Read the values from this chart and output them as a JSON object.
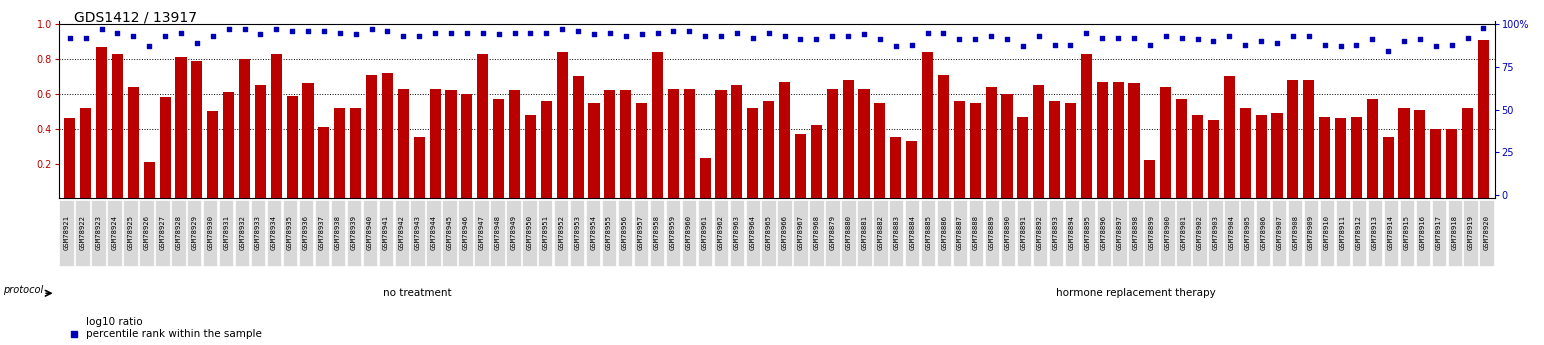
{
  "title": "GDS1412 / 13917",
  "samples": [
    "GSM78921",
    "GSM78922",
    "GSM78923",
    "GSM78924",
    "GSM78925",
    "GSM78926",
    "GSM78927",
    "GSM78928",
    "GSM78929",
    "GSM78930",
    "GSM78931",
    "GSM78932",
    "GSM78933",
    "GSM78934",
    "GSM78935",
    "GSM78936",
    "GSM78937",
    "GSM78938",
    "GSM78939",
    "GSM78940",
    "GSM78941",
    "GSM78942",
    "GSM78943",
    "GSM78944",
    "GSM78945",
    "GSM78946",
    "GSM78947",
    "GSM78948",
    "GSM78949",
    "GSM78950",
    "GSM78951",
    "GSM78952",
    "GSM78953",
    "GSM78954",
    "GSM78955",
    "GSM78956",
    "GSM78957",
    "GSM78958",
    "GSM78959",
    "GSM78960",
    "GSM78961",
    "GSM78962",
    "GSM78963",
    "GSM78964",
    "GSM78965",
    "GSM78966",
    "GSM78967",
    "GSM78968",
    "GSM78879",
    "GSM78880",
    "GSM78881",
    "GSM78882",
    "GSM78883",
    "GSM78884",
    "GSM78885",
    "GSM78886",
    "GSM78887",
    "GSM78888",
    "GSM78889",
    "GSM78890",
    "GSM78891",
    "GSM78892",
    "GSM78893",
    "GSM78894",
    "GSM78895",
    "GSM78896",
    "GSM78897",
    "GSM78898",
    "GSM78899",
    "GSM78900",
    "GSM78901",
    "GSM78902",
    "GSM78903",
    "GSM78904",
    "GSM78905",
    "GSM78906",
    "GSM78907",
    "GSM78908",
    "GSM78909",
    "GSM78910",
    "GSM78911",
    "GSM78912",
    "GSM78913",
    "GSM78914",
    "GSM78915",
    "GSM78916",
    "GSM78917",
    "GSM78918",
    "GSM78919",
    "GSM78920"
  ],
  "log10_ratio": [
    0.46,
    0.52,
    0.87,
    0.83,
    0.64,
    0.21,
    0.58,
    0.81,
    0.79,
    0.5,
    0.61,
    0.8,
    0.65,
    0.83,
    0.59,
    0.66,
    0.41,
    0.52,
    0.52,
    0.71,
    0.72,
    0.63,
    0.35,
    0.63,
    0.62,
    0.6,
    0.83,
    0.57,
    0.62,
    0.48,
    0.56,
    0.84,
    0.7,
    0.55,
    0.62,
    0.62,
    0.55,
    0.84,
    0.63,
    0.63,
    0.23,
    0.62,
    0.65,
    0.52,
    0.56,
    0.67,
    0.37,
    0.42,
    0.63,
    0.68,
    0.63,
    0.55,
    0.35,
    0.33,
    0.84,
    0.71,
    0.56,
    0.55,
    0.64,
    0.6,
    0.47,
    0.65,
    0.56,
    0.55,
    0.83,
    0.67,
    0.67,
    0.66,
    0.22,
    0.64,
    0.57,
    0.48,
    0.45,
    0.7,
    0.52,
    0.48,
    0.49,
    0.68,
    0.68,
    0.47,
    0.46,
    0.47,
    0.57,
    0.35,
    0.52,
    0.51,
    0.4,
    0.4,
    0.52,
    0.91
  ],
  "percentile_rank": [
    0.92,
    0.92,
    0.97,
    0.95,
    0.93,
    0.87,
    0.93,
    0.95,
    0.89,
    0.93,
    0.97,
    0.97,
    0.94,
    0.97,
    0.96,
    0.96,
    0.96,
    0.95,
    0.94,
    0.97,
    0.96,
    0.93,
    0.93,
    0.95,
    0.95,
    0.95,
    0.95,
    0.94,
    0.95,
    0.95,
    0.95,
    0.97,
    0.96,
    0.94,
    0.95,
    0.93,
    0.94,
    0.95,
    0.96,
    0.96,
    0.93,
    0.93,
    0.95,
    0.92,
    0.95,
    0.93,
    0.91,
    0.91,
    0.93,
    0.93,
    0.94,
    0.91,
    0.87,
    0.88,
    0.95,
    0.95,
    0.91,
    0.91,
    0.93,
    0.91,
    0.87,
    0.93,
    0.88,
    0.88,
    0.95,
    0.92,
    0.92,
    0.92,
    0.88,
    0.93,
    0.92,
    0.91,
    0.9,
    0.93,
    0.88,
    0.9,
    0.89,
    0.93,
    0.93,
    0.88,
    0.87,
    0.88,
    0.91,
    0.84,
    0.9,
    0.91,
    0.87,
    0.88,
    0.92,
    0.98
  ],
  "no_treatment_count": 45,
  "bar_color": "#bb0000",
  "dot_color": "#0000bb",
  "ylim_left": [
    0.0,
    1.0
  ],
  "ylim_right": [
    0,
    100
  ],
  "yticks_left": [
    0.2,
    0.4,
    0.6,
    0.8,
    1.0
  ],
  "yticks_right": [
    0,
    25,
    50,
    75,
    100
  ],
  "grid_values": [
    0.4,
    0.6,
    0.8
  ],
  "protocol_label": "protocol",
  "no_treatment_label": "no treatment",
  "hrt_label": "hormone replacement therapy",
  "no_treatment_color": "#d4edda",
  "hrt_color": "#5cb85c",
  "legend_bar_label": "log10 ratio",
  "legend_dot_label": "percentile rank within the sample",
  "title_fontsize": 10,
  "tick_fontsize": 5.2,
  "yaxis_fontsize": 7
}
